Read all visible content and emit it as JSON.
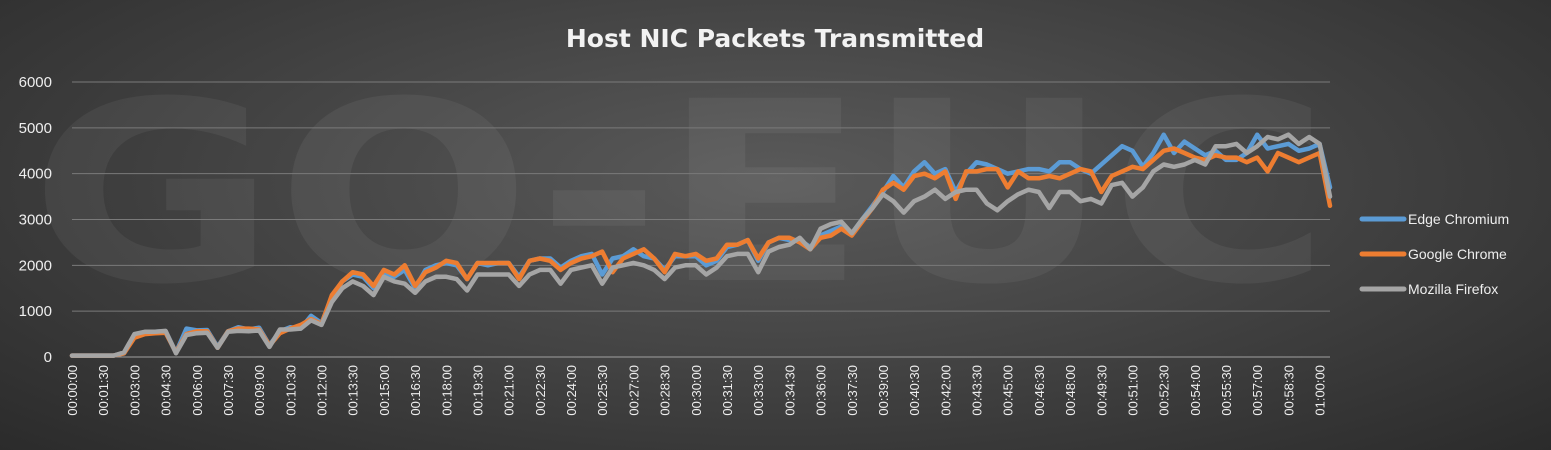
{
  "chart_data": {
    "type": "line",
    "title": "Host NIC Packets Transmitted",
    "watermark": "GO-EUC",
    "xlabel": "",
    "ylabel": "",
    "ylim": [
      0,
      6000
    ],
    "yticks": [
      "0",
      "1000",
      "2000",
      "3000",
      "4000",
      "5000",
      "6000"
    ],
    "grid": true,
    "legend_position": "right",
    "x": [
      "00:00:00",
      "00:00:30",
      "00:01:00",
      "00:01:30",
      "00:02:00",
      "00:02:30",
      "00:03:00",
      "00:03:30",
      "00:04:00",
      "00:04:30",
      "00:05:00",
      "00:05:30",
      "00:06:00",
      "00:06:30",
      "00:07:00",
      "00:07:30",
      "00:08:00",
      "00:08:30",
      "00:09:00",
      "00:09:30",
      "00:10:00",
      "00:10:30",
      "00:11:00",
      "00:11:30",
      "00:12:00",
      "00:12:30",
      "00:13:00",
      "00:13:30",
      "00:14:00",
      "00:14:30",
      "00:15:00",
      "00:15:30",
      "00:16:00",
      "00:16:30",
      "00:17:00",
      "00:17:30",
      "00:18:00",
      "00:18:30",
      "00:19:00",
      "00:19:30",
      "00:20:00",
      "00:20:30",
      "00:21:00",
      "00:21:30",
      "00:22:00",
      "00:22:30",
      "00:23:00",
      "00:23:30",
      "00:24:00",
      "00:24:30",
      "00:25:00",
      "00:25:30",
      "00:26:00",
      "00:26:30",
      "00:27:00",
      "00:27:30",
      "00:28:00",
      "00:28:30",
      "00:29:00",
      "00:29:30",
      "00:30:00",
      "00:30:30",
      "00:31:00",
      "00:31:30",
      "00:32:00",
      "00:32:30",
      "00:33:00",
      "00:33:30",
      "00:34:00",
      "00:34:30",
      "00:35:00",
      "00:35:30",
      "00:36:00",
      "00:36:30",
      "00:37:00",
      "00:37:30",
      "00:38:00",
      "00:38:30",
      "00:39:00",
      "00:39:30",
      "00:40:00",
      "00:40:30",
      "00:41:00",
      "00:41:30",
      "00:42:00",
      "00:42:30",
      "00:43:00",
      "00:43:30",
      "00:44:00",
      "00:44:30",
      "00:45:00",
      "00:45:30",
      "00:46:00",
      "00:46:30",
      "00:47:00",
      "00:47:30",
      "00:48:00",
      "00:48:30",
      "00:49:00",
      "00:49:30",
      "00:50:00",
      "00:50:30",
      "00:51:00",
      "00:51:30",
      "00:52:00",
      "00:52:30",
      "00:53:00",
      "00:53:30",
      "00:54:00",
      "00:54:30",
      "00:55:00",
      "00:55:30",
      "00:56:00",
      "00:56:30",
      "00:57:00",
      "00:57:30",
      "00:58:00",
      "00:58:30",
      "00:59:00",
      "00:59:30",
      "01:00:00",
      "01:00:30"
    ],
    "xticks": [
      "00:00:00",
      "00:01:30",
      "00:03:00",
      "00:04:30",
      "00:06:00",
      "00:07:30",
      "00:09:00",
      "00:10:30",
      "00:12:00",
      "00:13:30",
      "00:15:00",
      "00:16:30",
      "00:18:00",
      "00:19:30",
      "00:21:00",
      "00:22:30",
      "00:24:00",
      "00:25:30",
      "00:27:00",
      "00:28:30",
      "00:30:00",
      "00:31:30",
      "00:33:00",
      "00:34:30",
      "00:36:00",
      "00:37:30",
      "00:39:00",
      "00:40:30",
      "00:42:00",
      "00:43:30",
      "00:45:00",
      "00:46:30",
      "00:48:00",
      "00:49:30",
      "00:51:00",
      "00:52:30",
      "00:54:00",
      "00:55:30",
      "00:57:00",
      "00:58:30",
      "01:00:00"
    ],
    "series": [
      {
        "name": "Edge Chromium",
        "color": "#5b9bd5",
        "values": [
          30,
          30,
          30,
          30,
          30,
          80,
          450,
          530,
          550,
          560,
          100,
          620,
          580,
          590,
          220,
          560,
          650,
          600,
          640,
          260,
          560,
          650,
          620,
          900,
          740,
          1300,
          1650,
          1800,
          1750,
          1500,
          1800,
          1750,
          1900,
          1500,
          1900,
          2000,
          2050,
          2000,
          1700,
          2050,
          2000,
          2050,
          2050,
          1750,
          2100,
          2150,
          2150,
          1950,
          2100,
          2200,
          2250,
          1800,
          2150,
          2200,
          2350,
          2200,
          2150,
          1900,
          2200,
          2200,
          2200,
          2000,
          2100,
          2400,
          2450,
          2550,
          2100,
          2500,
          2600,
          2550,
          2550,
          2400,
          2650,
          2750,
          2850,
          2700,
          3000,
          3300,
          3600,
          3950,
          3700,
          4050,
          4250,
          4000,
          4100,
          3600,
          4000,
          4250,
          4200,
          4100,
          4000,
          4050,
          4100,
          4100,
          4050,
          4250,
          4250,
          4100,
          4000,
          4200,
          4400,
          4600,
          4500,
          4150,
          4450,
          4850,
          4450,
          4700,
          4550,
          4400,
          4500,
          4300,
          4300,
          4450,
          4850,
          4550,
          4600,
          4650,
          4500,
          4550,
          4650,
          3700
        ]
      },
      {
        "name": "Google Chrome",
        "color": "#ed7d31",
        "values": [
          30,
          30,
          30,
          30,
          30,
          80,
          420,
          500,
          520,
          530,
          100,
          500,
          560,
          560,
          200,
          560,
          620,
          620,
          600,
          250,
          520,
          620,
          700,
          830,
          720,
          1350,
          1650,
          1850,
          1800,
          1550,
          1900,
          1800,
          2000,
          1550,
          1850,
          1950,
          2100,
          2050,
          1700,
          2050,
          2050,
          2050,
          2050,
          1700,
          2100,
          2150,
          2100,
          1900,
          2050,
          2150,
          2200,
          2300,
          1850,
          2150,
          2250,
          2350,
          2150,
          1850,
          2250,
          2200,
          2250,
          2100,
          2150,
          2450,
          2450,
          2550,
          2150,
          2500,
          2600,
          2600,
          2500,
          2350,
          2600,
          2650,
          2800,
          2650,
          2950,
          3250,
          3650,
          3800,
          3650,
          3950,
          4000,
          3900,
          4050,
          3450,
          4050,
          4050,
          4100,
          4100,
          3700,
          4050,
          3900,
          3900,
          3950,
          3900,
          4000,
          4100,
          4050,
          3600,
          3950,
          4050,
          4150,
          4100,
          4300,
          4500,
          4550,
          4450,
          4350,
          4300,
          4400,
          4350,
          4350,
          4250,
          4350,
          4050,
          4450,
          4350,
          4250,
          4350,
          4450,
          3300
        ]
      },
      {
        "name": "Mozilla Firefox",
        "color": "#a5a5a5",
        "values": [
          30,
          30,
          30,
          30,
          30,
          100,
          500,
          550,
          550,
          570,
          80,
          480,
          520,
          530,
          200,
          550,
          570,
          560,
          580,
          220,
          600,
          600,
          620,
          800,
          700,
          1200,
          1500,
          1650,
          1550,
          1350,
          1750,
          1650,
          1600,
          1400,
          1650,
          1750,
          1750,
          1700,
          1450,
          1800,
          1800,
          1800,
          1800,
          1550,
          1800,
          1900,
          1900,
          1600,
          1900,
          1950,
          2000,
          1600,
          1950,
          2000,
          2050,
          2000,
          1900,
          1700,
          1950,
          2000,
          2000,
          1800,
          1950,
          2200,
          2250,
          2250,
          1850,
          2300,
          2400,
          2450,
          2600,
          2350,
          2800,
          2900,
          2950,
          2700,
          3000,
          3250,
          3550,
          3400,
          3150,
          3400,
          3500,
          3650,
          3450,
          3600,
          3650,
          3650,
          3350,
          3200,
          3400,
          3550,
          3650,
          3600,
          3250,
          3600,
          3600,
          3400,
          3450,
          3350,
          3750,
          3800,
          3500,
          3700,
          4050,
          4200,
          4150,
          4200,
          4300,
          4200,
          4600,
          4600,
          4650,
          4450,
          4600,
          4800,
          4750,
          4850,
          4650,
          4800,
          4650,
          3500
        ]
      }
    ]
  }
}
